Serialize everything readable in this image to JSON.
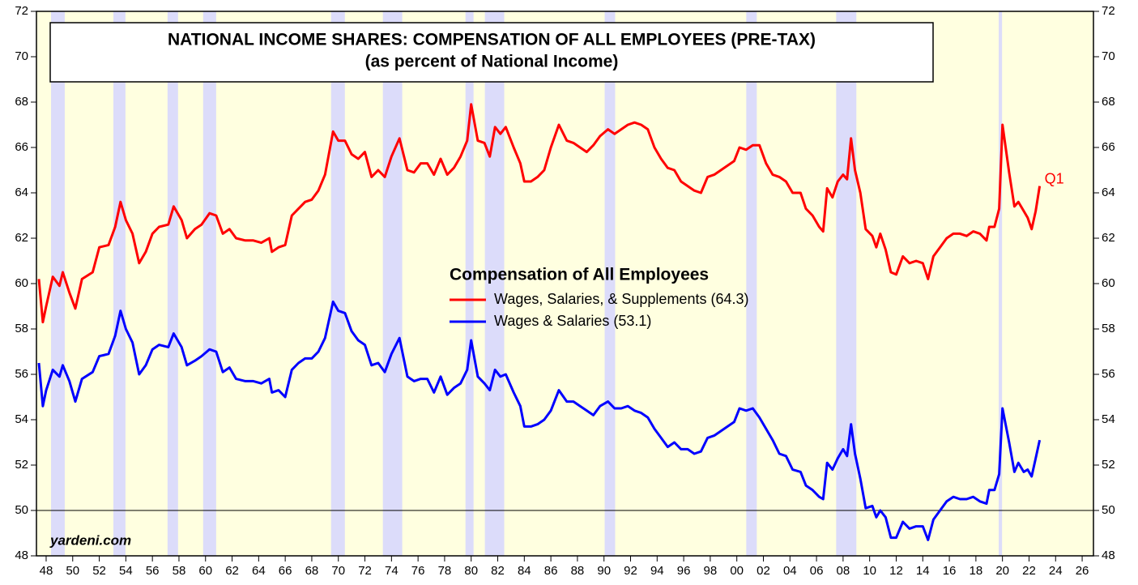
{
  "chart_data": {
    "type": "line",
    "title": "NATIONAL INCOME SHARES: COMPENSATION OF ALL EMPLOYEES (PRE-TAX)",
    "subtitle": "(as percent of National Income)",
    "legend_title": "Compensation of All Employees",
    "annotation": "Q1",
    "source": "yardeni.com",
    "background": "#ffffe0",
    "recession_color": "#dcdcfa",
    "recessions": [
      [
        1948.37,
        1949.4
      ],
      [
        1953.06,
        1953.97
      ],
      [
        1957.14,
        1957.93
      ],
      [
        1959.82,
        1960.8
      ],
      [
        1969.45,
        1970.49
      ],
      [
        1973.35,
        1974.81
      ],
      [
        1979.57,
        1980.18
      ],
      [
        1981.03,
        1982.49
      ],
      [
        1990.05,
        1990.84
      ],
      [
        2000.71,
        2001.5
      ],
      [
        2007.48,
        2009.0
      ],
      [
        2019.72,
        2019.97
      ]
    ],
    "reference_line": 50,
    "xlim": [
      1947.27,
      2026.85
    ],
    "ylim": [
      48,
      72
    ],
    "xticks": [
      {
        "value": 1948,
        "label": "48"
      },
      {
        "value": 1950,
        "label": "50"
      },
      {
        "value": 1952,
        "label": "52"
      },
      {
        "value": 1954,
        "label": "54"
      },
      {
        "value": 1956,
        "label": "56"
      },
      {
        "value": 1958,
        "label": "58"
      },
      {
        "value": 1960,
        "label": "60"
      },
      {
        "value": 1962,
        "label": "62"
      },
      {
        "value": 1964,
        "label": "64"
      },
      {
        "value": 1966,
        "label": "66"
      },
      {
        "value": 1968,
        "label": "68"
      },
      {
        "value": 1970,
        "label": "70"
      },
      {
        "value": 1972,
        "label": "72"
      },
      {
        "value": 1974,
        "label": "74"
      },
      {
        "value": 1976,
        "label": "76"
      },
      {
        "value": 1978,
        "label": "78"
      },
      {
        "value": 1980,
        "label": "80"
      },
      {
        "value": 1982,
        "label": "82"
      },
      {
        "value": 1984,
        "label": "84"
      },
      {
        "value": 1986,
        "label": "86"
      },
      {
        "value": 1988,
        "label": "88"
      },
      {
        "value": 1990,
        "label": "90"
      },
      {
        "value": 1992,
        "label": "92"
      },
      {
        "value": 1994,
        "label": "94"
      },
      {
        "value": 1996,
        "label": "96"
      },
      {
        "value": 1998,
        "label": "98"
      },
      {
        "value": 2000,
        "label": "00"
      },
      {
        "value": 2002,
        "label": "02"
      },
      {
        "value": 2004,
        "label": "04"
      },
      {
        "value": 2006,
        "label": "06"
      },
      {
        "value": 2008,
        "label": "08"
      },
      {
        "value": 2010,
        "label": "10"
      },
      {
        "value": 2012,
        "label": "12"
      },
      {
        "value": 2014,
        "label": "14"
      },
      {
        "value": 2016,
        "label": "16"
      },
      {
        "value": 2018,
        "label": "18"
      },
      {
        "value": 2020,
        "label": "20"
      },
      {
        "value": 2022,
        "label": "22"
      },
      {
        "value": 2024,
        "label": "24"
      },
      {
        "value": 2026,
        "label": "26"
      }
    ],
    "yticks": [
      48,
      50,
      52,
      54,
      56,
      58,
      60,
      62,
      64,
      66,
      68,
      70,
      72
    ],
    "x": [
      1947.45,
      1947.75,
      1948,
      1948.5,
      1949,
      1949.25,
      1949.75,
      1950.2,
      1950.7,
      1951.5,
      1952,
      1952.7,
      1953.2,
      1953.6,
      1954,
      1954.5,
      1955,
      1955.5,
      1956,
      1956.5,
      1957.2,
      1957.6,
      1958.2,
      1958.6,
      1959.2,
      1959.7,
      1960.3,
      1960.8,
      1961.3,
      1961.8,
      1962.3,
      1963,
      1963.6,
      1964.2,
      1964.8,
      1965,
      1965.5,
      1966,
      1966.5,
      1967,
      1967.5,
      1968,
      1968.5,
      1969,
      1969.6,
      1970,
      1970.5,
      1971,
      1971.5,
      1972,
      1972.5,
      1973,
      1973.5,
      1974,
      1974.6,
      1975.2,
      1975.7,
      1976.2,
      1976.7,
      1977.2,
      1977.7,
      1978.2,
      1978.7,
      1979.2,
      1979.7,
      1980,
      1980.5,
      1981,
      1981.4,
      1981.8,
      1982.2,
      1982.6,
      1983.2,
      1983.7,
      1984,
      1984.5,
      1985,
      1985.5,
      1986,
      1986.6,
      1987.2,
      1987.7,
      1988.2,
      1988.7,
      1989.2,
      1989.7,
      1990.3,
      1990.8,
      1991.3,
      1991.8,
      1992.3,
      1992.8,
      1993.3,
      1993.8,
      1994.3,
      1994.8,
      1995.3,
      1995.8,
      1996.3,
      1996.8,
      1997.3,
      1997.8,
      1998.3,
      1998.8,
      1999.3,
      1999.8,
      2000.2,
      2000.7,
      2001.2,
      2001.7,
      2002.2,
      2002.7,
      2003.2,
      2003.7,
      2004.2,
      2004.8,
      2005.2,
      2005.7,
      2006.2,
      2006.5,
      2006.8,
      2007.2,
      2007.6,
      2008,
      2008.3,
      2008.6,
      2008.9,
      2009.3,
      2009.7,
      2010.2,
      2010.5,
      2010.8,
      2011.2,
      2011.6,
      2012,
      2012.5,
      2013,
      2013.5,
      2014,
      2014.4,
      2014.8,
      2015.3,
      2015.8,
      2016.3,
      2016.8,
      2017.3,
      2017.8,
      2018.3,
      2018.8,
      2019.0,
      2019.4,
      2019.75,
      2020.0,
      2020.5,
      2020.9,
      2021.2,
      2021.6,
      2021.9,
      2022.2,
      2022.5,
      2022.8
    ],
    "series": [
      {
        "name": "Wages, Salaries, & Supplements (64.3)",
        "color": "#ff0000",
        "values": [
          60.2,
          58.3,
          59.0,
          60.3,
          59.9,
          60.5,
          59.6,
          58.9,
          60.2,
          60.5,
          61.6,
          61.7,
          62.5,
          63.6,
          62.8,
          62.2,
          60.9,
          61.4,
          62.2,
          62.5,
          62.6,
          63.4,
          62.8,
          62.0,
          62.4,
          62.6,
          63.1,
          63.0,
          62.2,
          62.4,
          62.0,
          61.9,
          61.9,
          61.8,
          62.0,
          61.4,
          61.6,
          61.7,
          63.0,
          63.3,
          63.6,
          63.7,
          64.1,
          64.8,
          66.7,
          66.3,
          66.3,
          65.7,
          65.5,
          65.8,
          64.7,
          65.0,
          64.7,
          65.6,
          66.4,
          65.0,
          64.9,
          65.3,
          65.3,
          64.8,
          65.5,
          64.8,
          65.1,
          65.6,
          66.3,
          67.9,
          66.3,
          66.2,
          65.6,
          66.9,
          66.6,
          66.9,
          66.0,
          65.3,
          64.5,
          64.5,
          64.7,
          65.0,
          66.0,
          67.0,
          66.3,
          66.2,
          66.0,
          65.8,
          66.1,
          66.5,
          66.8,
          66.6,
          66.8,
          67.0,
          67.1,
          67.0,
          66.8,
          66.0,
          65.5,
          65.1,
          65.0,
          64.5,
          64.3,
          64.1,
          64.0,
          64.7,
          64.8,
          65.0,
          65.2,
          65.4,
          66.0,
          65.9,
          66.1,
          66.1,
          65.3,
          64.8,
          64.7,
          64.5,
          64.0,
          64.0,
          63.3,
          63.0,
          62.5,
          62.3,
          64.2,
          63.8,
          64.5,
          64.8,
          64.6,
          66.4,
          65.0,
          64.0,
          62.4,
          62.1,
          61.6,
          62.2,
          61.5,
          60.5,
          60.4,
          61.2,
          60.9,
          61.0,
          60.9,
          60.2,
          61.2,
          61.6,
          62.0,
          62.2,
          62.2,
          62.1,
          62.3,
          62.2,
          61.9,
          62.5,
          62.5,
          63.3,
          67.0,
          64.9,
          63.4,
          63.6,
          63.2,
          62.9,
          62.4,
          63.2,
          64.3
        ]
      },
      {
        "name": "Wages & Salaries (53.1)",
        "color": "#0000ff",
        "values": [
          56.5,
          54.6,
          55.3,
          56.2,
          55.9,
          56.4,
          55.7,
          54.8,
          55.8,
          56.1,
          56.8,
          56.9,
          57.7,
          58.8,
          58.0,
          57.4,
          56.0,
          56.4,
          57.1,
          57.3,
          57.2,
          57.8,
          57.2,
          56.4,
          56.6,
          56.8,
          57.1,
          57.0,
          56.1,
          56.3,
          55.8,
          55.7,
          55.7,
          55.6,
          55.8,
          55.2,
          55.3,
          55.0,
          56.2,
          56.5,
          56.7,
          56.7,
          57.0,
          57.6,
          59.2,
          58.8,
          58.7,
          57.9,
          57.5,
          57.3,
          56.4,
          56.5,
          56.1,
          56.9,
          57.6,
          55.9,
          55.7,
          55.8,
          55.8,
          55.2,
          55.9,
          55.1,
          55.4,
          55.6,
          56.2,
          57.5,
          55.9,
          55.6,
          55.3,
          56.2,
          55.9,
          56.0,
          55.2,
          54.6,
          53.7,
          53.7,
          53.8,
          54.0,
          54.4,
          55.3,
          54.8,
          54.8,
          54.6,
          54.4,
          54.2,
          54.6,
          54.8,
          54.5,
          54.5,
          54.6,
          54.4,
          54.3,
          54.1,
          53.6,
          53.2,
          52.8,
          53.0,
          52.7,
          52.7,
          52.5,
          52.6,
          53.2,
          53.3,
          53.5,
          53.7,
          53.9,
          54.5,
          54.4,
          54.5,
          54.1,
          53.6,
          53.1,
          52.5,
          52.4,
          51.8,
          51.7,
          51.1,
          50.9,
          50.6,
          50.5,
          52.1,
          51.8,
          52.3,
          52.7,
          52.4,
          53.8,
          52.5,
          51.4,
          50.1,
          50.2,
          49.7,
          50.0,
          49.7,
          48.8,
          48.8,
          49.5,
          49.2,
          49.3,
          49.3,
          48.7,
          49.6,
          50.0,
          50.4,
          50.6,
          50.5,
          50.5,
          50.6,
          50.4,
          50.3,
          50.9,
          50.9,
          51.6,
          54.5,
          53.0,
          51.7,
          52.1,
          51.7,
          51.8,
          51.5,
          52.3,
          53.1
        ]
      }
    ]
  }
}
